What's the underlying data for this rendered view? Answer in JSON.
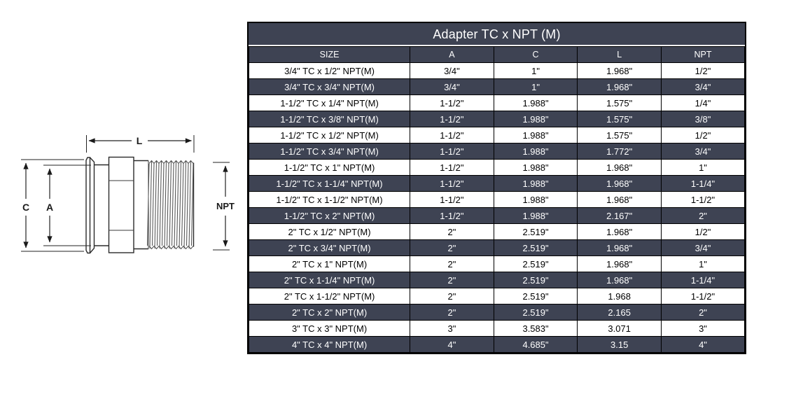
{
  "diagram": {
    "labels": {
      "l": "L",
      "c": "C",
      "a": "A",
      "npt": "NPT"
    }
  },
  "table": {
    "title": "Adapter TC x NPT (M)",
    "columns": [
      "SIZE",
      "A",
      "C",
      "L",
      "NPT"
    ],
    "rows": [
      [
        "3/4\" TC x 1/2\" NPT(M)",
        "3/4\"",
        "1\"",
        "1.968\"",
        "1/2\""
      ],
      [
        "3/4\" TC x 3/4\" NPT(M)",
        "3/4\"",
        "1\"",
        "1.968\"",
        "3/4\""
      ],
      [
        "1-1/2\" TC x 1/4\" NPT(M)",
        "1-1/2\"",
        "1.988\"",
        "1.575\"",
        "1/4\""
      ],
      [
        "1-1/2\" TC x 3/8\" NPT(M)",
        "1-1/2\"",
        "1.988\"",
        "1.575\"",
        "3/8\""
      ],
      [
        "1-1/2\" TC x 1/2\" NPT(M)",
        "1-1/2\"",
        "1.988\"",
        "1.575\"",
        "1/2\""
      ],
      [
        "1-1/2\" TC x 3/4\" NPT(M)",
        "1-1/2\"",
        "1.988\"",
        "1.772\"",
        "3/4\""
      ],
      [
        "1-1/2\" TC x 1\" NPT(M)",
        "1-1/2\"",
        "1.988\"",
        "1.968\"",
        "1\""
      ],
      [
        "1-1/2\" TC x 1-1/4\" NPT(M)",
        "1-1/2\"",
        "1.988\"",
        "1.968\"",
        "1-1/4\""
      ],
      [
        "1-1/2\" TC x 1-1/2\" NPT(M)",
        "1-1/2\"",
        "1.988\"",
        "1.968\"",
        "1-1/2\""
      ],
      [
        "1-1/2\" TC x 2\" NPT(M)",
        "1-1/2\"",
        "1.988\"",
        "2.167\"",
        "2\""
      ],
      [
        "2\" TC x 1/2\" NPT(M)",
        "2\"",
        "2.519\"",
        "1.968\"",
        "1/2\""
      ],
      [
        "2\" TC x 3/4\" NPT(M)",
        "2\"",
        "2.519\"",
        "1.968\"",
        "3/4\""
      ],
      [
        "2\" TC x 1\" NPT(M)",
        "2\"",
        "2.519\"",
        "1.968\"",
        "1\""
      ],
      [
        "2\" TC x 1-1/4\" NPT(M)",
        "2\"",
        "2.519\"",
        "1.968\"",
        "1-1/4\""
      ],
      [
        "2\" TC x 1-1/2\" NPT(M)",
        "2\"",
        "2.519\"",
        "1.968",
        "1-1/2\""
      ],
      [
        "2\" TC x 2\" NPT(M)",
        "2\"",
        "2.519\"",
        "2.165",
        "2\""
      ],
      [
        "3\" TC x 3\" NPT(M)",
        "3\"",
        "3.583\"",
        "3.071",
        "3\""
      ],
      [
        "4\" TC x 4\" NPT(M)",
        "4\"",
        "4.685\"",
        "3.15",
        "4\""
      ]
    ]
  },
  "colors": {
    "row_dark": "#3E4353",
    "row_light": "#FFFFFF",
    "border": "#000000",
    "title_text": "#FFFFFF"
  }
}
